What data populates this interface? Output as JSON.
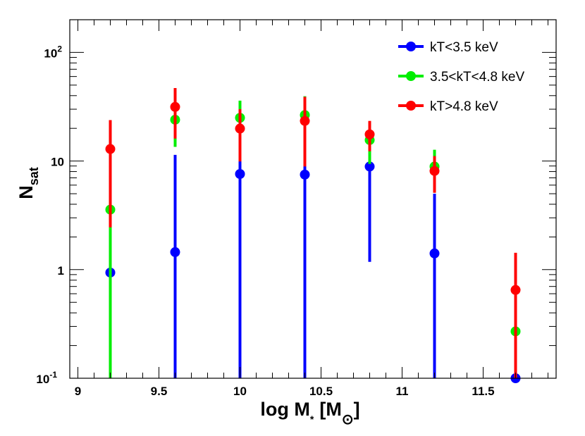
{
  "chart_data": {
    "type": "scatter",
    "title": "",
    "xlabel": {
      "main": "log M",
      "sub": "*",
      "bracket_open": "[M",
      "sun": "⊙",
      "bracket_close": "]"
    },
    "ylabel": {
      "main": "N",
      "sub": "sat"
    },
    "xlim": [
      8.95,
      11.95
    ],
    "ylim": [
      0.1,
      200
    ],
    "yscale": "log",
    "grid": false,
    "xticks": [
      9,
      9.5,
      10,
      10.5,
      11,
      11.5
    ],
    "xtick_labels": [
      "9",
      "9.5",
      "10",
      "10.5",
      "11",
      "11.5"
    ],
    "yticks": [
      0.1,
      1,
      10,
      100
    ],
    "ytick_labels": [
      "10^-1",
      "1",
      "10",
      "10^2"
    ],
    "legend_position": "top-right",
    "series": [
      {
        "name": "kT<3.5 keV",
        "color": "#0000ff",
        "x": [
          9.2,
          9.6,
          10.0,
          10.4,
          10.8,
          11.2,
          11.7
        ],
        "y": [
          0.94,
          1.45,
          7.6,
          7.5,
          8.9,
          1.41,
          0.1
        ],
        "y_low": [
          0.1,
          0.1,
          0.1,
          0.1,
          1.18,
          0.1,
          0.1
        ],
        "y_high": [
          3.0,
          11.4,
          19,
          20,
          14,
          5.0,
          0.9
        ]
      },
      {
        "name": "3.5<kT<4.8 keV",
        "color": "#00ee00",
        "x": [
          9.2,
          9.6,
          10.0,
          10.4,
          10.8,
          11.2,
          11.7
        ],
        "y": [
          3.57,
          24,
          25,
          26.5,
          15.6,
          8.9,
          0.27
        ],
        "y_low": [
          0.1,
          13.5,
          11,
          13.3,
          9.4,
          5.5,
          0.1
        ],
        "y_high": [
          12,
          40,
          36,
          39.5,
          22,
          12.7,
          1.0
        ]
      },
      {
        "name": "kT>4.8 keV",
        "color": "#ff0000",
        "x": [
          9.2,
          9.6,
          10.0,
          10.4,
          10.8,
          11.2,
          11.7
        ],
        "y": [
          12.9,
          31.5,
          19.9,
          23.4,
          17.6,
          8.1,
          0.65
        ],
        "y_low": [
          2.45,
          16.1,
          9.9,
          8.9,
          12.3,
          5.1,
          0.1
        ],
        "y_high": [
          23.8,
          47,
          30,
          39,
          23.4,
          11.1,
          1.43
        ]
      }
    ]
  }
}
